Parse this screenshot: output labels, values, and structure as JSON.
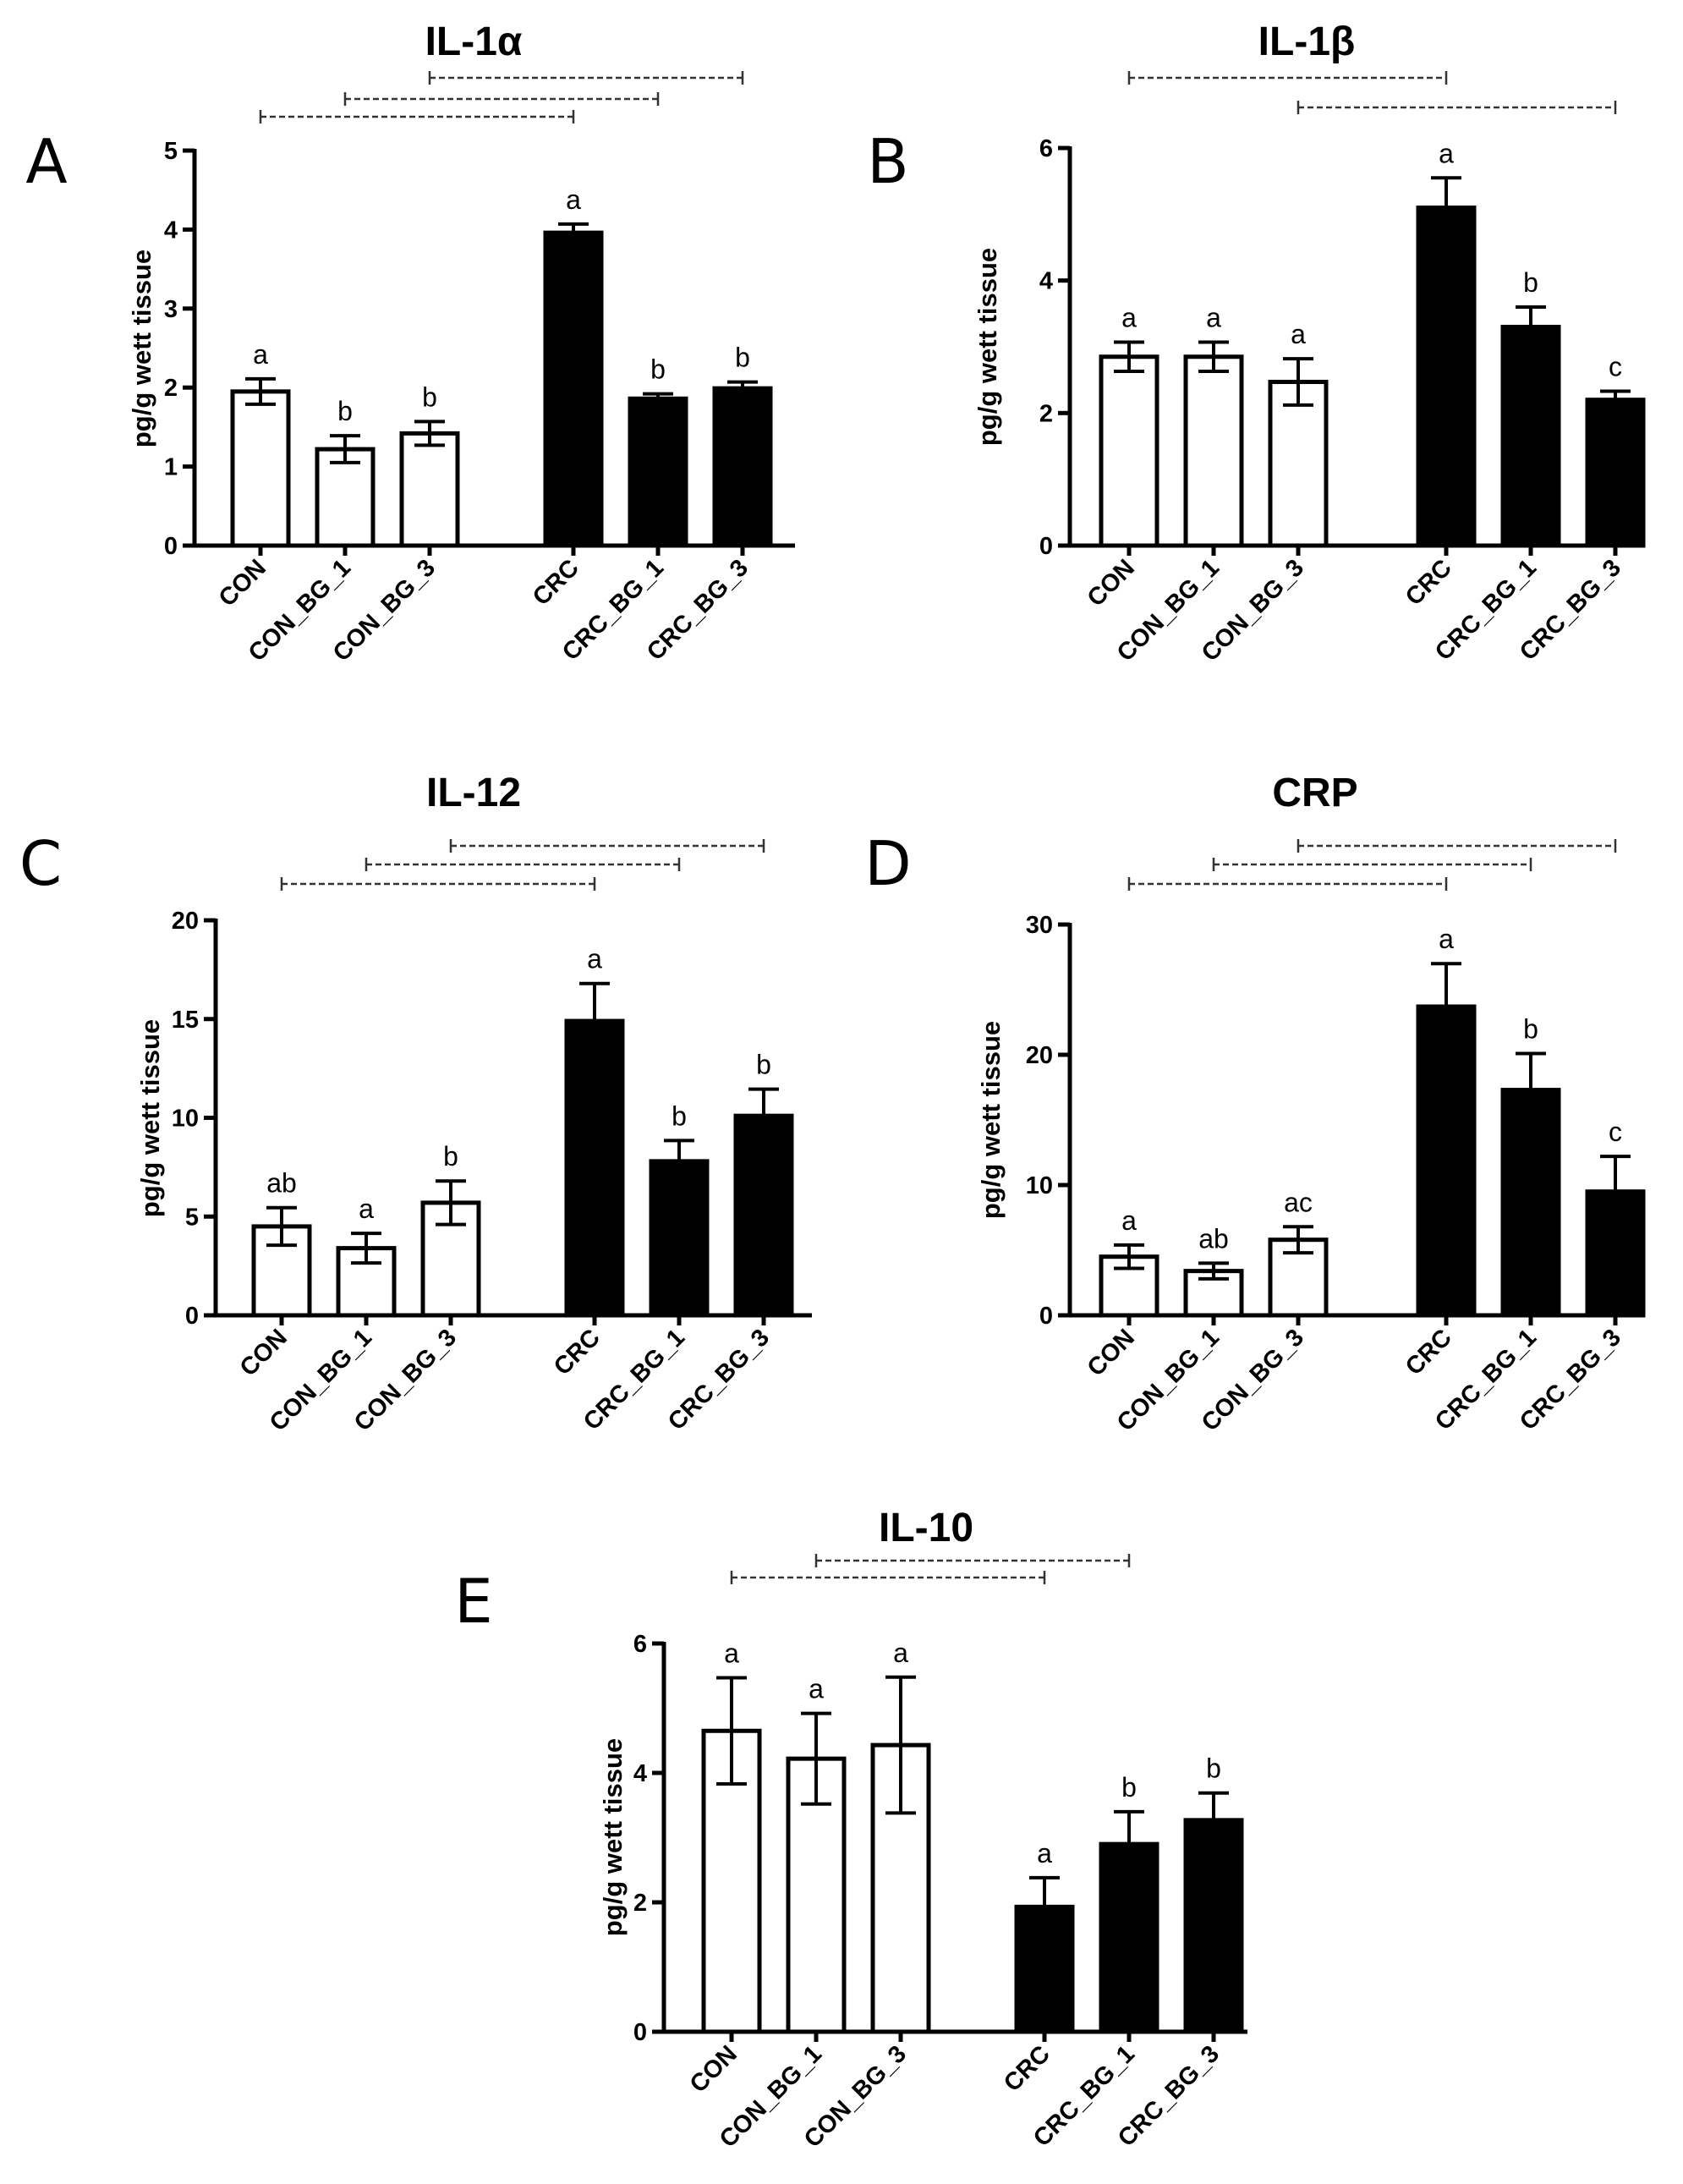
{
  "figure": {
    "ylabel": "pg/g wett tissue",
    "categories": [
      "CON",
      "CON_BG_1",
      "CON_BG_3",
      "CRC",
      "CRC_BG_1",
      "CRC_BG_3"
    ]
  },
  "chart_data": [
    {
      "panel": "A",
      "title": "IL-1α",
      "type": "bar",
      "categories": [
        "CON",
        "CON_BG_1",
        "CON_BG_3",
        "CRC",
        "CRC_BG_1",
        "CRC_BG_3"
      ],
      "values": [
        1.95,
        1.22,
        1.42,
        3.96,
        1.86,
        1.99
      ],
      "errors": [
        0.16,
        0.17,
        0.15,
        0.11,
        0.06,
        0.08
      ],
      "filled": [
        false,
        false,
        false,
        true,
        true,
        true
      ],
      "letters": [
        "a",
        "b",
        "b",
        "a",
        "b",
        "b"
      ],
      "ylabel": "pg/g wett tissue",
      "ylim": [
        0,
        5
      ],
      "yticks": [
        0,
        1,
        2,
        3,
        4,
        5
      ],
      "comparisons": [
        [
          0,
          3
        ],
        [
          1,
          4
        ],
        [
          2,
          5
        ]
      ]
    },
    {
      "panel": "B",
      "title": "IL-1β",
      "type": "bar",
      "categories": [
        "CON",
        "CON_BG_1",
        "CON_BG_3",
        "CRC",
        "CRC_BG_1",
        "CRC_BG_3"
      ],
      "values": [
        2.85,
        2.85,
        2.47,
        5.1,
        3.3,
        2.2
      ],
      "errors": [
        0.22,
        0.22,
        0.35,
        0.45,
        0.3,
        0.13
      ],
      "filled": [
        false,
        false,
        false,
        true,
        true,
        true
      ],
      "letters": [
        "a",
        "a",
        "a",
        "a",
        "b",
        "c"
      ],
      "ylabel": "pg/g wett tissue",
      "ylim": [
        0,
        6
      ],
      "yticks": [
        0,
        2,
        4,
        6
      ],
      "comparisons": [
        [
          0,
          3
        ],
        [
          2,
          5
        ]
      ]
    },
    {
      "panel": "C",
      "title": "IL-12",
      "type": "bar",
      "categories": [
        "CON",
        "CON_BG_1",
        "CON_BG_3",
        "CRC",
        "CRC_BG_1",
        "CRC_BG_3"
      ],
      "values": [
        4.5,
        3.4,
        5.7,
        14.9,
        7.8,
        10.1
      ],
      "errors": [
        0.95,
        0.75,
        1.1,
        1.9,
        1.05,
        1.35
      ],
      "filled": [
        false,
        false,
        false,
        true,
        true,
        true
      ],
      "letters": [
        "ab",
        "a",
        "b",
        "a",
        "b",
        "b"
      ],
      "ylabel": "pg/g wett tissue",
      "ylim": [
        0,
        20
      ],
      "yticks": [
        0,
        5,
        10,
        15,
        20
      ],
      "comparisons": [
        [
          0,
          3
        ],
        [
          1,
          4
        ],
        [
          2,
          5
        ]
      ]
    },
    {
      "panel": "D",
      "title": "CRP",
      "type": "bar",
      "categories": [
        "CON",
        "CON_BG_1",
        "CON_BG_3",
        "CRC",
        "CRC_BG_1",
        "CRC_BG_3"
      ],
      "values": [
        4.5,
        3.4,
        5.8,
        23.7,
        17.3,
        9.5
      ],
      "errors": [
        0.9,
        0.6,
        1.0,
        3.3,
        2.8,
        2.7
      ],
      "filled": [
        false,
        false,
        false,
        true,
        true,
        true
      ],
      "letters": [
        "a",
        "ab",
        "ac",
        "a",
        "b",
        "c"
      ],
      "ylabel": "pg/g wett tissue",
      "ylim": [
        0,
        30
      ],
      "yticks": [
        0,
        10,
        20,
        30
      ],
      "comparisons": [
        [
          0,
          3
        ],
        [
          1,
          4
        ],
        [
          2,
          5
        ]
      ]
    },
    {
      "panel": "E",
      "title": "IL-10",
      "type": "bar",
      "categories": [
        "CON",
        "CON_BG_1",
        "CON_BG_3",
        "CRC",
        "CRC_BG_1",
        "CRC_BG_3"
      ],
      "values": [
        4.65,
        4.22,
        4.43,
        1.93,
        2.9,
        3.27
      ],
      "errors": [
        0.82,
        0.7,
        1.05,
        0.45,
        0.5,
        0.42
      ],
      "filled": [
        false,
        false,
        false,
        true,
        true,
        true
      ],
      "letters": [
        "a",
        "a",
        "a",
        "a",
        "b",
        "b"
      ],
      "ylabel": "pg/g wett tissue",
      "ylim": [
        0,
        6
      ],
      "yticks": [
        0,
        2,
        4,
        6
      ],
      "comparisons": [
        [
          0,
          3
        ],
        [
          1,
          4
        ]
      ]
    }
  ]
}
